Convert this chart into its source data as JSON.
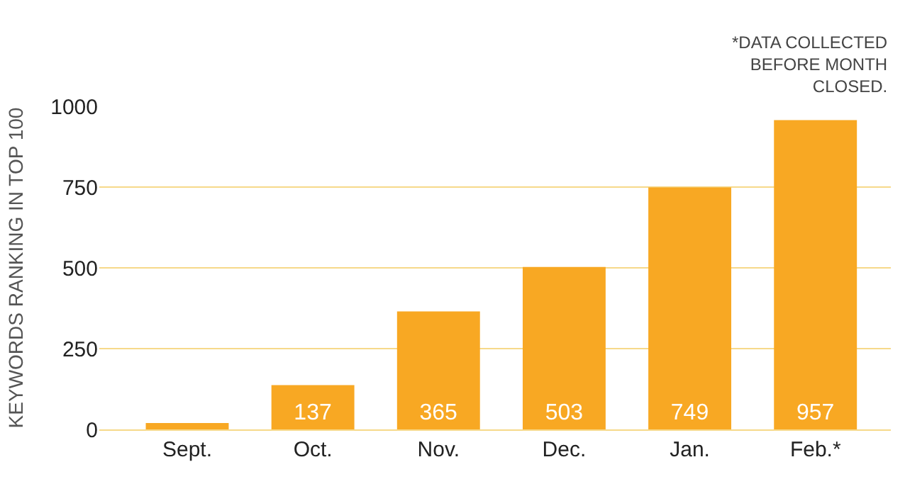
{
  "chart_data": {
    "type": "bar",
    "categories": [
      "Sept.",
      "Oct.",
      "Nov.",
      "Dec.",
      "Jan.",
      "Feb.*"
    ],
    "values": [
      20,
      137,
      365,
      503,
      749,
      957
    ],
    "value_labels": [
      null,
      "137",
      "365",
      "503",
      "749",
      "957"
    ],
    "color": "#f8a823",
    "ylabel": "KEYWORDS RANKING IN TOP 100",
    "ylim": [
      0,
      1000
    ],
    "yticks": [
      0,
      250,
      500,
      750,
      1000
    ],
    "grid": "y",
    "annotations": [
      "*DATA COLLECTED\nBEFORE MONTH\nCLOSED."
    ],
    "legend": false
  }
}
